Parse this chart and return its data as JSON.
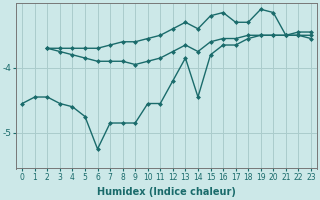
{
  "xlabel": "Humidex (Indice chaleur)",
  "x_values": [
    0,
    1,
    2,
    3,
    4,
    5,
    6,
    7,
    8,
    9,
    10,
    11,
    12,
    13,
    14,
    15,
    16,
    17,
    18,
    19,
    20,
    21,
    22,
    23
  ],
  "line_main": [
    -4.55,
    -4.45,
    -4.45,
    -4.55,
    -4.6,
    -4.75,
    -5.25,
    -4.85,
    -4.85,
    -4.85,
    -4.55,
    -4.55,
    -4.2,
    -3.85,
    -4.45,
    -3.8,
    -3.65,
    -3.65,
    -3.55,
    -3.5,
    -3.5,
    -3.5,
    -3.5,
    -3.55
  ],
  "line_mid_x": [
    2,
    3,
    4,
    5,
    6,
    7,
    8,
    9,
    10,
    11,
    12,
    13,
    14,
    15,
    16,
    17,
    18,
    19,
    20,
    21,
    22,
    23
  ],
  "line_mid_y": [
    -3.7,
    -3.75,
    -3.8,
    -3.85,
    -3.9,
    -3.9,
    -3.9,
    -3.95,
    -3.9,
    -3.85,
    -3.75,
    -3.65,
    -3.75,
    -3.6,
    -3.55,
    -3.55,
    -3.5,
    -3.5,
    -3.5,
    -3.5,
    -3.5,
    -3.5
  ],
  "line_top_x": [
    2,
    3,
    4,
    5,
    6,
    7,
    8,
    9,
    10,
    11,
    12,
    13,
    14,
    15,
    16,
    17,
    18,
    19,
    20,
    21,
    22,
    23
  ],
  "line_top_y": [
    -3.7,
    -3.7,
    -3.7,
    -3.7,
    -3.7,
    -3.65,
    -3.6,
    -3.6,
    -3.55,
    -3.5,
    -3.4,
    -3.3,
    -3.4,
    -3.2,
    -3.15,
    -3.3,
    -3.3,
    -3.1,
    -3.15,
    -3.5,
    -3.45,
    -3.45
  ],
  "ylim": [
    -5.55,
    -3.0
  ],
  "yticks": [
    -5.0,
    -4.0
  ],
  "xlim": [
    -0.5,
    23.5
  ],
  "bg_color": "#cce8e8",
  "grid_color": "#aacccc",
  "line_color": "#1a6b6b",
  "line_width": 1.0,
  "marker_size": 2.5,
  "tick_fontsize": 5.5,
  "xlabel_fontsize": 7
}
